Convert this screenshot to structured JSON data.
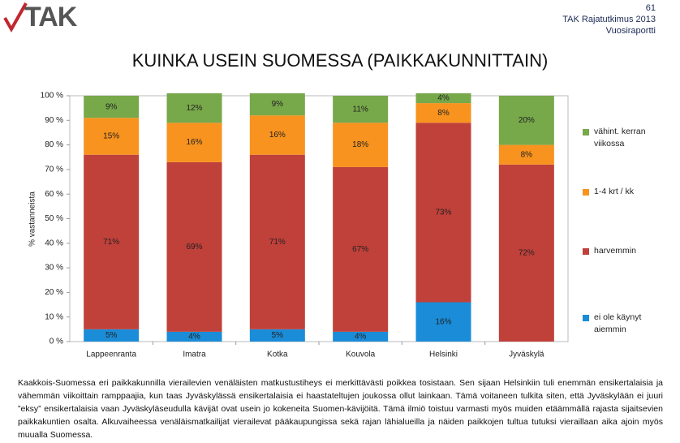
{
  "header": {
    "logo": "TAK",
    "page_number": "61",
    "publication": "TAK Rajatutkimus 2013",
    "report": "Vuosiraportti"
  },
  "chart_data": {
    "type": "stacked_bar",
    "title": "KUINKA USEIN SUOMESSA (PAIKKAKUNNITTAIN)",
    "y_label": "% vastanneista",
    "categories": [
      "Lappeenranta",
      "Imatra",
      "Kotka",
      "Kouvola",
      "Helsinki",
      "Jyväskylä"
    ],
    "series": [
      {
        "name": "ei ole käynyt aiemmin",
        "color": "#1a8cd8",
        "values": [
          5,
          4,
          5,
          4,
          16,
          0
        ],
        "value_labels": [
          "5%",
          "4%",
          "5%",
          "4%",
          "16%",
          null
        ]
      },
      {
        "name": "harvemmin",
        "color": "#c0403a",
        "values": [
          71,
          69,
          71,
          67,
          73,
          72
        ],
        "value_labels": [
          "71%",
          "69%",
          "71%",
          "67%",
          "73%",
          "72%"
        ]
      },
      {
        "name": "1-4 krt / kk",
        "color": "#f7931e",
        "values": [
          15,
          16,
          16,
          18,
          8,
          8
        ],
        "value_labels": [
          "15%",
          "16%",
          "16%",
          "18%",
          "8%",
          "8%"
        ]
      },
      {
        "name": "vähint. kerran viikossa",
        "color": "#77a84a",
        "values": [
          9,
          12,
          9,
          11,
          4,
          20
        ],
        "value_labels": [
          "9%",
          "12%",
          "9%",
          "11%",
          "4%",
          "20%"
        ]
      }
    ],
    "ylim": [
      0,
      100
    ],
    "yticks": [
      {
        "value": 0,
        "label": "0 %"
      },
      {
        "value": 10,
        "label": "10 %"
      },
      {
        "value": 20,
        "label": "20 %"
      },
      {
        "value": 30,
        "label": "30 %"
      },
      {
        "value": 40,
        "label": "40 %"
      },
      {
        "value": 50,
        "label": "50 %"
      },
      {
        "value": 60,
        "label": "60 %"
      },
      {
        "value": 70,
        "label": "70 %"
      },
      {
        "value": 80,
        "label": "80 %"
      },
      {
        "value": 90,
        "label": "90 %"
      },
      {
        "value": 100,
        "label": "100 %"
      }
    ],
    "legend": "right"
  },
  "body": {
    "paragraph": "Kaakkois-Suomessa eri paikkakunnilla vierailevien venäläisten matkustustiheys ei merkittävästi poikkea tosistaan. Sen sijaan Helsinkiin tuli enemmän ensikertalaisia ja vähemmän viikoittain ramppaajia, kun taas Jyväskylässä ensikertalaisia ei haastateltujen joukossa ollut lainkaan. Tämä voitaneen tulkita siten, että Jyväskylään ei juuri ”eksy” ensikertalaisia vaan Jyväskyläseudulla kävijät ovat usein jo kokeneita Suomen-kävijöitä. Tämä ilmiö toistuu varmasti myös muiden etäämmällä rajasta sijaitsevien paikkakuntien osalta. Alkuvaiheessa venäläismatkailijat vierailevat pääkaupungissa sekä rajan lähialueilla ja näiden paikkojen tultua tutuksi vieraillaan aika ajoin myös muualla Suomessa."
  }
}
